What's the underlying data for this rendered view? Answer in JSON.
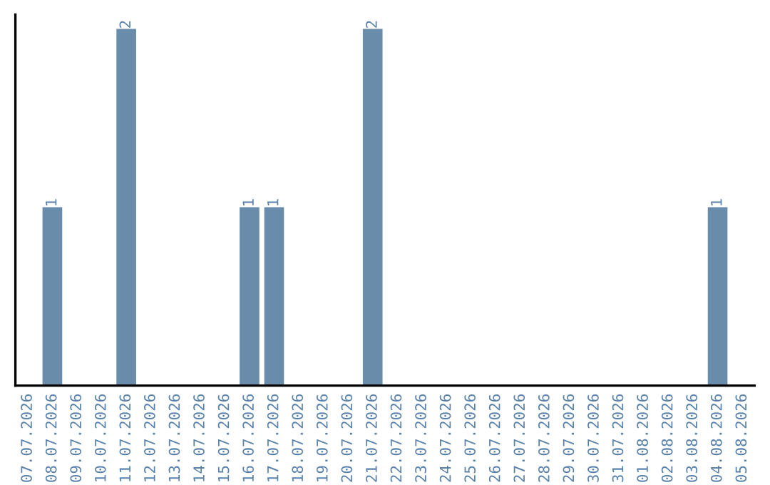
{
  "chart_data": {
    "type": "bar",
    "categories": [
      "07.07.2026",
      "08.07.2026",
      "09.07.2026",
      "10.07.2026",
      "11.07.2026",
      "12.07.2026",
      "13.07.2026",
      "14.07.2026",
      "15.07.2026",
      "16.07.2026",
      "17.07.2026",
      "18.07.2026",
      "19.07.2026",
      "20.07.2026",
      "21.07.2026",
      "22.07.2026",
      "23.07.2026",
      "24.07.2026",
      "25.07.2026",
      "26.07.2026",
      "27.07.2026",
      "28.07.2026",
      "29.07.2026",
      "30.07.2026",
      "31.07.2026",
      "01.08.2026",
      "02.08.2026",
      "03.08.2026",
      "04.08.2026",
      "05.08.2026"
    ],
    "values": [
      0,
      1,
      0,
      0,
      2,
      0,
      0,
      0,
      0,
      1,
      1,
      0,
      0,
      0,
      2,
      0,
      0,
      0,
      0,
      0,
      0,
      0,
      0,
      0,
      0,
      0,
      0,
      0,
      1,
      0
    ],
    "value_labels": [
      null,
      "1",
      null,
      null,
      "2",
      null,
      null,
      null,
      null,
      "1",
      "1",
      null,
      null,
      null,
      "2",
      null,
      null,
      null,
      null,
      null,
      null,
      null,
      null,
      null,
      null,
      null,
      null,
      null,
      "1",
      null
    ],
    "color": "#6a8cab",
    "tick_labels": "x",
    "grid": false,
    "legend": false
  }
}
